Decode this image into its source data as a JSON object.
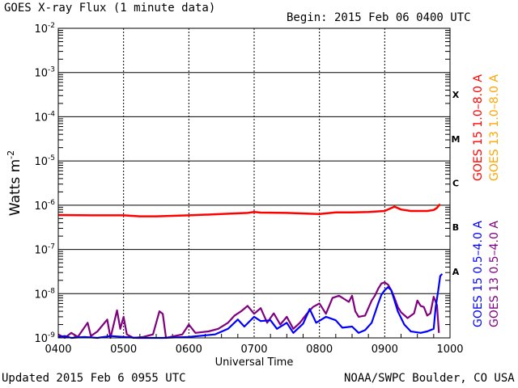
{
  "header": {
    "title": "GOES X-ray Flux (1 minute data)",
    "begin": "Begin: 2015 Feb 06 0400 UTC"
  },
  "footer": {
    "updated": "Updated 2015 Feb  6 0955 UTC",
    "credit": "NOAA/SWPC Boulder, CO USA"
  },
  "chart_data": {
    "type": "line",
    "title": "GOES X-ray Flux (1 minute data)",
    "xlabel": "Universal Time",
    "ylabel": "Watts m",
    "ylabel_sup": "-2",
    "y_scale": "log",
    "ylim": [
      1e-09,
      0.01
    ],
    "xlim": [
      4.0,
      10.0
    ],
    "x_unit": "hours UTC",
    "x_ticks": [
      {
        "value": 4,
        "label": "0400"
      },
      {
        "value": 5,
        "label": "0500"
      },
      {
        "value": 6,
        "label": "0600"
      },
      {
        "value": 7,
        "label": "0700"
      },
      {
        "value": 8,
        "label": "0800"
      },
      {
        "value": 9,
        "label": "0900"
      },
      {
        "value": 10,
        "label": "1000"
      }
    ],
    "y_ticks": [
      {
        "exp": -9,
        "mant": "10",
        "sup": "-9"
      },
      {
        "exp": -8,
        "mant": "10",
        "sup": "-8"
      },
      {
        "exp": -7,
        "mant": "10",
        "sup": "-7"
      },
      {
        "exp": -6,
        "mant": "10",
        "sup": "-6"
      },
      {
        "exp": -5,
        "mant": "10",
        "sup": "-5"
      },
      {
        "exp": -4,
        "mant": "10",
        "sup": "-4"
      },
      {
        "exp": -3,
        "mant": "10",
        "sup": "-3"
      },
      {
        "exp": -2,
        "mant": "10",
        "sup": "-2"
      }
    ],
    "flare_classes": [
      {
        "label": "A",
        "exp": -8
      },
      {
        "label": "B",
        "exp": -7
      },
      {
        "label": "C",
        "exp": -6
      },
      {
        "label": "M",
        "exp": -5
      },
      {
        "label": "X",
        "exp": -4
      }
    ],
    "grid": true,
    "legend_position": "right, rotated vertical",
    "series": [
      {
        "name": "GOES 15 1.0–8.0 A",
        "color": "#ff0000",
        "points": [
          [
            4.0,
            6e-07
          ],
          [
            4.5,
            5.9e-07
          ],
          [
            5.0,
            5.9e-07
          ],
          [
            5.25,
            5.6e-07
          ],
          [
            5.5,
            5.6e-07
          ],
          [
            6.0,
            5.9e-07
          ],
          [
            6.5,
            6.3e-07
          ],
          [
            6.9,
            6.7e-07
          ],
          [
            7.0,
            7e-07
          ],
          [
            7.1,
            6.8e-07
          ],
          [
            7.5,
            6.7e-07
          ],
          [
            8.0,
            6.3e-07
          ],
          [
            8.25,
            6.9e-07
          ],
          [
            8.5,
            6.9e-07
          ],
          [
            8.75,
            7e-07
          ],
          [
            9.0,
            7.4e-07
          ],
          [
            9.1,
            8.6e-07
          ],
          [
            9.15,
            9.3e-07
          ],
          [
            9.25,
            8e-07
          ],
          [
            9.4,
            7.4e-07
          ],
          [
            9.65,
            7.4e-07
          ],
          [
            9.75,
            7.8e-07
          ],
          [
            9.8,
            8.7e-07
          ],
          [
            9.83,
            1e-06
          ],
          [
            9.85,
            1.05e-06
          ]
        ]
      },
      {
        "name": "GOES 13 1.0–8.0 A",
        "color": "#ffa500",
        "points": [
          [
            9.8,
            9.2e-07
          ],
          [
            9.83,
            9.8e-07
          ],
          [
            9.85,
            1e-06
          ]
        ]
      },
      {
        "name": "GOES 15 0.5–4.0 A",
        "color": "#0000ff",
        "points": [
          [
            4.0,
            1.05e-09
          ],
          [
            4.1,
            1.1e-09
          ],
          [
            4.2,
            1e-09
          ],
          [
            4.4,
            1.05e-09
          ],
          [
            4.6,
            1e-09
          ],
          [
            4.8,
            1.1e-09
          ],
          [
            5.0,
            1.05e-09
          ],
          [
            5.2,
            1e-09
          ],
          [
            5.6,
            1e-09
          ],
          [
            6.0,
            1.05e-09
          ],
          [
            6.4,
            1.2e-09
          ],
          [
            6.6,
            1.6e-09
          ],
          [
            6.75,
            2.6e-09
          ],
          [
            6.85,
            1.8e-09
          ],
          [
            7.0,
            3e-09
          ],
          [
            7.1,
            2.4e-09
          ],
          [
            7.25,
            2.5e-09
          ],
          [
            7.35,
            1.6e-09
          ],
          [
            7.5,
            2.2e-09
          ],
          [
            7.6,
            1.3e-09
          ],
          [
            7.75,
            2.1e-09
          ],
          [
            7.85,
            4.5e-09
          ],
          [
            7.95,
            2.2e-09
          ],
          [
            8.1,
            3e-09
          ],
          [
            8.25,
            2.5e-09
          ],
          [
            8.35,
            1.7e-09
          ],
          [
            8.5,
            1.8e-09
          ],
          [
            8.6,
            1.3e-09
          ],
          [
            8.7,
            1.5e-09
          ],
          [
            8.8,
            2.2e-09
          ],
          [
            8.9,
            6e-09
          ],
          [
            8.95,
            9.5e-09
          ],
          [
            9.0,
            1.2e-08
          ],
          [
            9.05,
            1.4e-08
          ],
          [
            9.1,
            1.2e-08
          ],
          [
            9.15,
            7e-09
          ],
          [
            9.2,
            4e-09
          ],
          [
            9.3,
            2e-09
          ],
          [
            9.4,
            1.4e-09
          ],
          [
            9.55,
            1.3e-09
          ],
          [
            9.65,
            1.4e-09
          ],
          [
            9.75,
            1.6e-09
          ],
          [
            9.78,
            5e-09
          ],
          [
            9.82,
            1.2e-08
          ],
          [
            9.85,
            2.5e-08
          ],
          [
            9.88,
            2.8e-08
          ]
        ]
      },
      {
        "name": "GOES 13 0.5–4.0 A",
        "color": "#800080",
        "points": [
          [
            4.0,
            1.2e-09
          ],
          [
            4.1,
            1e-09
          ],
          [
            4.2,
            1.3e-09
          ],
          [
            4.3,
            1.05e-09
          ],
          [
            4.45,
            2.2e-09
          ],
          [
            4.5,
            1.1e-09
          ],
          [
            4.6,
            1.4e-09
          ],
          [
            4.75,
            2.6e-09
          ],
          [
            4.8,
            1e-09
          ],
          [
            4.9,
            4.2e-09
          ],
          [
            4.95,
            1.6e-09
          ],
          [
            5.0,
            3e-09
          ],
          [
            5.05,
            1.2e-09
          ],
          [
            5.15,
            1e-09
          ],
          [
            5.3,
            1.05e-09
          ],
          [
            5.45,
            1.2e-09
          ],
          [
            5.55,
            4e-09
          ],
          [
            5.6,
            3.5e-09
          ],
          [
            5.65,
            1e-09
          ],
          [
            5.9,
            1.2e-09
          ],
          [
            6.0,
            2e-09
          ],
          [
            6.1,
            1.3e-09
          ],
          [
            6.3,
            1.4e-09
          ],
          [
            6.45,
            1.6e-09
          ],
          [
            6.6,
            2.2e-09
          ],
          [
            6.7,
            3.2e-09
          ],
          [
            6.8,
            4e-09
          ],
          [
            6.9,
            5.3e-09
          ],
          [
            7.0,
            3.5e-09
          ],
          [
            7.1,
            4.7e-09
          ],
          [
            7.2,
            2.2e-09
          ],
          [
            7.3,
            3.6e-09
          ],
          [
            7.4,
            2e-09
          ],
          [
            7.5,
            3e-09
          ],
          [
            7.6,
            1.6e-09
          ],
          [
            7.7,
            2.2e-09
          ],
          [
            7.8,
            3.4e-09
          ],
          [
            7.9,
            5e-09
          ],
          [
            8.0,
            6e-09
          ],
          [
            8.1,
            3.5e-09
          ],
          [
            8.2,
            8e-09
          ],
          [
            8.3,
            9e-09
          ],
          [
            8.45,
            6.5e-09
          ],
          [
            8.5,
            9e-09
          ],
          [
            8.55,
            4e-09
          ],
          [
            8.6,
            3e-09
          ],
          [
            8.7,
            3.2e-09
          ],
          [
            8.8,
            7e-09
          ],
          [
            8.85,
            9e-09
          ],
          [
            8.9,
            1.3e-08
          ],
          [
            8.95,
            1.7e-08
          ],
          [
            9.0,
            1.8e-08
          ],
          [
            9.05,
            1.6e-08
          ],
          [
            9.1,
            1.2e-08
          ],
          [
            9.15,
            8e-09
          ],
          [
            9.2,
            5e-09
          ],
          [
            9.25,
            3.8e-09
          ],
          [
            9.35,
            2.8e-09
          ],
          [
            9.45,
            3.6e-09
          ],
          [
            9.5,
            7e-09
          ],
          [
            9.55,
            5.3e-09
          ],
          [
            9.6,
            5e-09
          ],
          [
            9.65,
            3.2e-09
          ],
          [
            9.7,
            3.6e-09
          ],
          [
            9.75,
            8.5e-09
          ],
          [
            9.8,
            5.5e-09
          ],
          [
            9.83,
            1.3e-09
          ]
        ]
      }
    ]
  },
  "legend": {
    "left_top": {
      "text": "GOES 15 1.0–8.0 A",
      "color": "#ff0000"
    },
    "right_top": {
      "text": "GOES 13 1.0–8.0 A",
      "color": "#ffa500"
    },
    "left_bottom": {
      "text": "GOES 15 0.5–4.0 A",
      "color": "#0000ff"
    },
    "right_bottom": {
      "text": "GOES 13 0.5–4.0 A",
      "color": "#800080"
    }
  }
}
